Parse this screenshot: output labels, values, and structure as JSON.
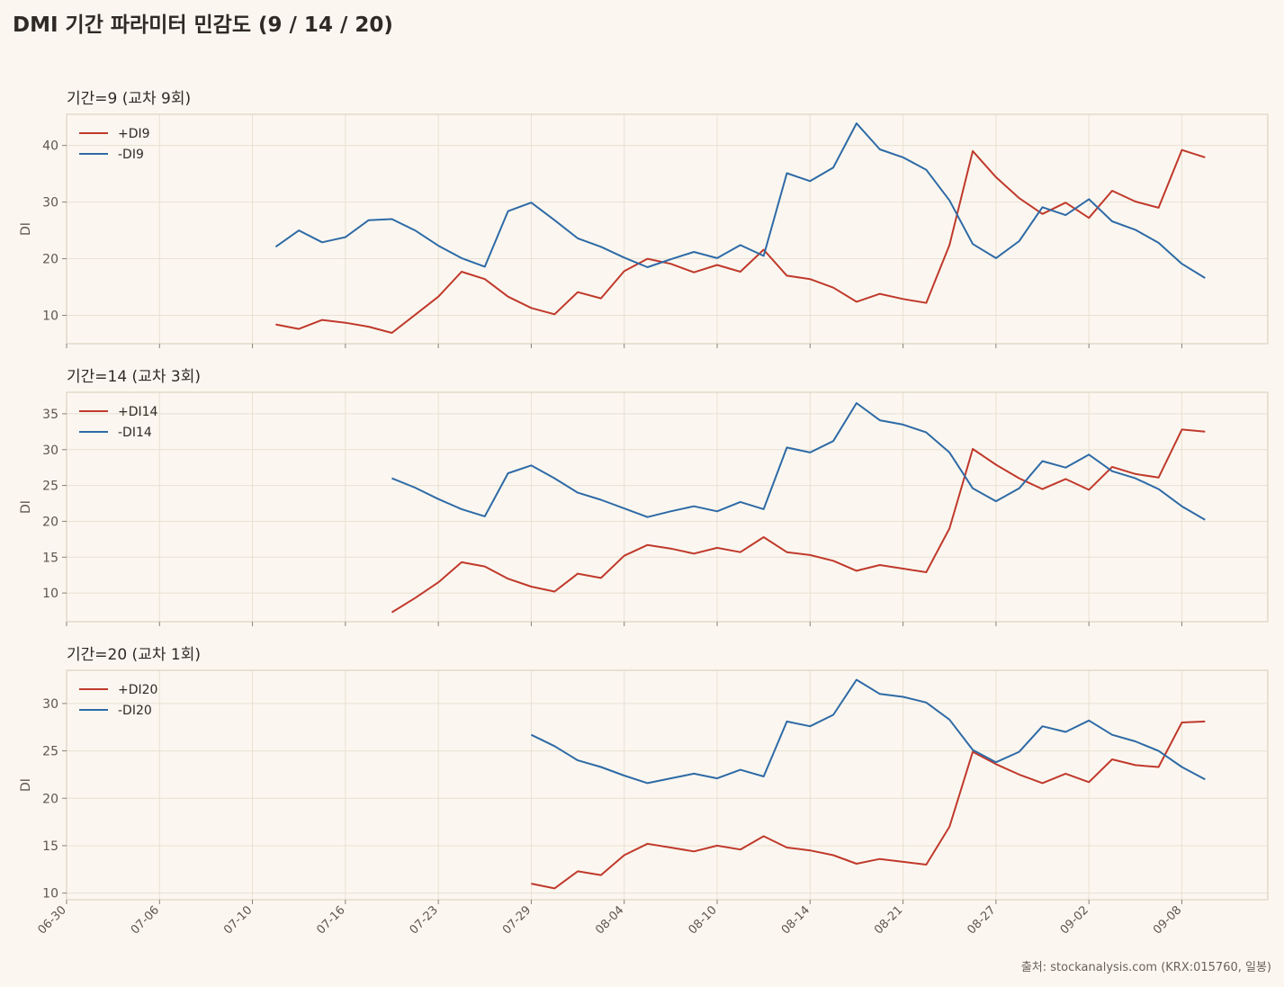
{
  "title": "DMI 기간 파라미터 민감도 (9 / 14 / 20)",
  "source": "출처: stockanalysis.com (KRX:015760, 일봉)",
  "colors": {
    "plus": "#c0392b",
    "minus": "#2e6aa6",
    "background": "#fbf7f0",
    "panel_border": "#ddd3c2",
    "grid": "#e8e0d2"
  },
  "chart_data": {
    "type": "line",
    "xticks": [
      "06-30",
      "07-06",
      "07-10",
      "07-16",
      "07-23",
      "07-29",
      "08-04",
      "08-10",
      "08-14",
      "08-21",
      "08-27",
      "09-02",
      "09-08"
    ],
    "x_index_range": [
      0,
      51.7
    ],
    "panels": [
      {
        "title": "기간=9  (교차 9회)",
        "ylabel": "DI",
        "ylim": [
          5,
          45.5
        ],
        "yticks": [
          10,
          20,
          30,
          40
        ],
        "grid": true,
        "legend": "upper-left",
        "series": [
          {
            "name": "+DI9",
            "color": "plus",
            "start": 9,
            "values": [
              8.4,
              7.6,
              9.2,
              8.7,
              8.0,
              6.9,
              10.1,
              13.3,
              17.7,
              16.4,
              13.3,
              11.3,
              10.2,
              14.1,
              13.0,
              17.8,
              20.0,
              19.1,
              17.6,
              18.9,
              17.7,
              21.6,
              17.0,
              16.4,
              14.9,
              12.4,
              13.8,
              12.9,
              12.2,
              22.4,
              39.0,
              34.4,
              30.7,
              27.9,
              29.9,
              27.2,
              32.0,
              30.1,
              29.0,
              39.2,
              37.9
            ]
          },
          {
            "name": "-DI9",
            "color": "minus",
            "start": 9,
            "values": [
              22.1,
              25.0,
              22.9,
              23.8,
              26.8,
              27.0,
              25.0,
              22.3,
              20.1,
              18.6,
              28.4,
              29.9,
              26.8,
              23.6,
              22.1,
              20.2,
              18.5,
              19.9,
              21.2,
              20.1,
              22.4,
              20.5,
              35.1,
              33.7,
              36.1,
              43.9,
              39.3,
              37.9,
              35.7,
              30.3,
              22.6,
              20.1,
              23.1,
              29.1,
              27.7,
              30.5,
              26.6,
              25.1,
              22.8,
              19.1,
              16.6
            ]
          }
        ]
      },
      {
        "title": "기간=14  (교차 3회)",
        "ylabel": "DI",
        "ylim": [
          6.0,
          38.0
        ],
        "yticks": [
          10,
          15,
          20,
          25,
          30,
          35
        ],
        "grid": true,
        "legend": "upper-left",
        "series": [
          {
            "name": "+DI14",
            "color": "plus",
            "start": 14,
            "values": [
              7.3,
              9.3,
              11.5,
              14.3,
              13.7,
              12.0,
              10.9,
              10.2,
              12.7,
              12.1,
              15.2,
              16.7,
              16.2,
              15.5,
              16.3,
              15.7,
              17.8,
              15.7,
              15.3,
              14.5,
              13.1,
              13.9,
              13.4,
              12.9,
              19.0,
              30.1,
              27.9,
              26.0,
              24.5,
              25.9,
              24.4,
              27.6,
              26.6,
              26.1,
              32.8,
              32.5
            ]
          },
          {
            "name": "-DI14",
            "color": "minus",
            "start": 14,
            "values": [
              26.0,
              24.7,
              23.1,
              21.7,
              20.7,
              26.7,
              27.8,
              26.0,
              24.0,
              23.0,
              21.8,
              20.6,
              21.4,
              22.1,
              21.4,
              22.7,
              21.7,
              30.3,
              29.6,
              31.2,
              36.5,
              34.1,
              33.5,
              32.4,
              29.6,
              24.6,
              22.8,
              24.6,
              28.4,
              27.5,
              29.3,
              27.0,
              26.0,
              24.5,
              22.1,
              20.2
            ]
          }
        ]
      },
      {
        "title": "기간=20  (교차 1회)",
        "ylabel": "DI",
        "ylim": [
          9.3,
          33.5
        ],
        "yticks": [
          10,
          15,
          20,
          25,
          30
        ],
        "grid": true,
        "legend": "upper-left",
        "series": [
          {
            "name": "+DI20",
            "color": "plus",
            "start": 20,
            "values": [
              11.0,
              10.5,
              12.3,
              11.9,
              14.0,
              15.2,
              14.8,
              14.4,
              15.0,
              14.6,
              16.0,
              14.8,
              14.5,
              14.0,
              13.1,
              13.6,
              13.3,
              13.0,
              17.0,
              24.9,
              23.6,
              22.5,
              21.6,
              22.6,
              21.7,
              24.1,
              23.5,
              23.3,
              28.0,
              28.1
            ]
          },
          {
            "name": "-DI20",
            "color": "minus",
            "start": 20,
            "values": [
              26.7,
              25.5,
              24.0,
              23.3,
              22.4,
              21.6,
              22.1,
              22.6,
              22.1,
              23.0,
              22.3,
              28.1,
              27.6,
              28.8,
              32.5,
              31.0,
              30.7,
              30.1,
              28.3,
              25.1,
              23.8,
              24.9,
              27.6,
              27.0,
              28.2,
              26.7,
              26.0,
              25.0,
              23.3,
              22.0
            ]
          }
        ]
      }
    ]
  }
}
